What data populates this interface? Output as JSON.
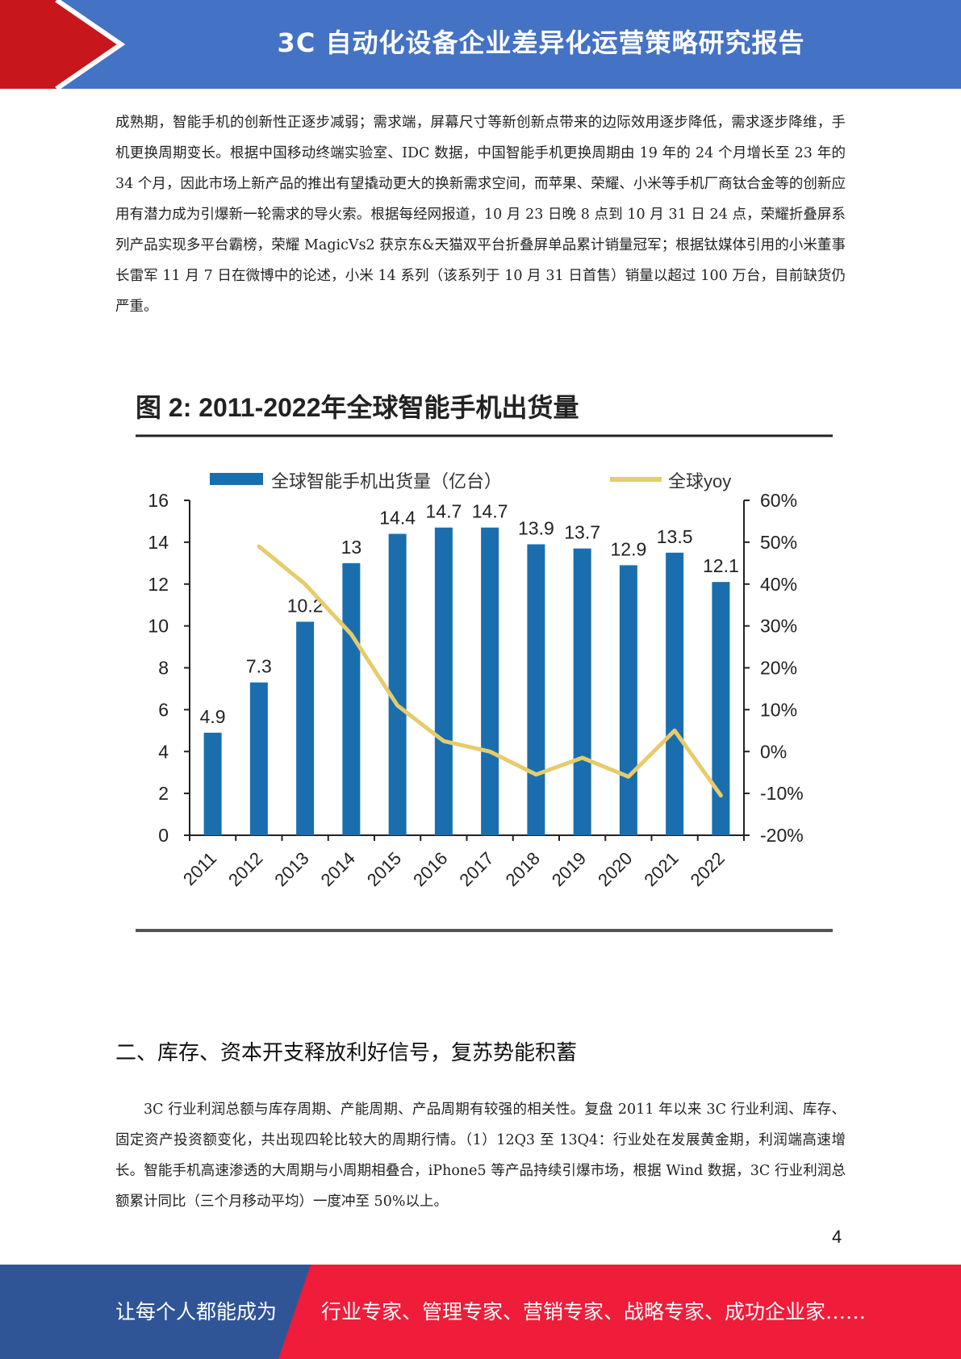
{
  "header": {
    "title": "3C 自动化设备企业差异化运营策略研究报告"
  },
  "paragraph1": "成熟期，智能手机的创新性正逐步减弱；需求端，屏幕尺寸等新创新点带来的边际效用逐步降低，需求逐步降维，手机更换周期变长。根据中国移动终端实验室、IDC 数据，中国智能手机更换周期由 19 年的 24 个月增长至 23 年的 34 个月，因此市场上新产品的推出有望撬动更大的换新需求空间，而苹果、荣耀、小米等手机厂商钛合金等的创新应用有潜力成为引爆新一轮需求的导火索。根据每经网报道，10 月 23 日晚 8 点到 10 月 31 日 24 点，荣耀折叠屏系列产品实现多平台霸榜，荣耀 MagicVs2 获京东&天猫双平台折叠屏单品累计销量冠军；根据钛媒体引用的小米董事长雷军 11 月 7 日在微博中的论述，小米 14 系列（该系列于 10 月 31 日首售）销量以超过 100 万台，目前缺货仍严重。",
  "figure": {
    "label": "图 2:  2011-2022年全球智能手机出货量"
  },
  "chart_data": {
    "type": "bar",
    "categories": [
      "2011",
      "2012",
      "2013",
      "2014",
      "2015",
      "2016",
      "2017",
      "2018",
      "2019",
      "2020",
      "2021",
      "2022"
    ],
    "series": [
      {
        "name": "全球智能手机出货量（亿台）",
        "type": "bar",
        "axis": "left",
        "values": [
          4.9,
          7.3,
          10.2,
          13,
          14.4,
          14.7,
          14.7,
          13.9,
          13.7,
          12.9,
          13.5,
          12.1
        ],
        "labels": [
          "4.9",
          "7.3",
          "10.2",
          "13",
          "14.4",
          "14.7",
          "14.7",
          "13.9",
          "13.7",
          "12.9",
          "13.5",
          "12.1"
        ]
      },
      {
        "name": "全球yoy",
        "type": "line",
        "axis": "right",
        "values": [
          null,
          49,
          40,
          28,
          11,
          2.5,
          0,
          -5.5,
          -1.5,
          -6,
          5,
          -10.5
        ]
      }
    ],
    "y_left": {
      "range": [
        0,
        16
      ],
      "ticks": [
        "0",
        "2",
        "4",
        "6",
        "8",
        "10",
        "12",
        "14",
        "16"
      ]
    },
    "y_right": {
      "range": [
        -20,
        60
      ],
      "ticks": [
        "-20%",
        "-10%",
        "0%",
        "10%",
        "20%",
        "30%",
        "40%",
        "50%",
        "60%"
      ]
    },
    "legend_position": "top",
    "grid": false,
    "colors": {
      "bar": "#1a6eae",
      "line": "#e6cc6a"
    }
  },
  "section_heading": "二、库存、资本开支释放利好信号，复苏势能积蓄",
  "paragraph2": "3C 行业利润总额与库存周期、产能周期、产品周期有较强的相关性。复盘 2011 年以来 3C 行业利润、库存、固定资产投资额变化，共出现四轮比较大的周期行情。（1）12Q3 至 13Q4：行业处在发展黄金期，利润端高速增长。智能手机高速渗透的大周期与小周期相叠合，iPhone5 等产品持续引爆市场，根据 Wind 数据，3C 行业利润总额累计同比（三个月移动平均）一度冲至 50%以上。",
  "page_number": "4",
  "footer": {
    "left_text": "让每个人都能成为",
    "right_text": "行业专家、管理专家、营销专家、战略专家、成功企业家……"
  },
  "colors": {
    "header_blue": "#4472c4",
    "brand_red": "#c8161d",
    "footer_blue": "#2f5597",
    "footer_red": "#ef1c3a"
  }
}
